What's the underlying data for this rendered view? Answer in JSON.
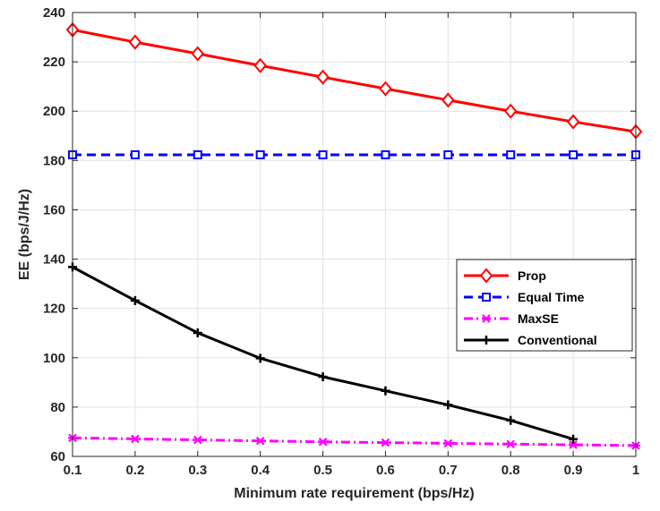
{
  "chart_data": {
    "type": "line",
    "xlabel": "Minimum rate requirement (bps/Hz)",
    "ylabel": "EE (bps/J/Hz)",
    "xlim": [
      0.1,
      1.0
    ],
    "ylim": [
      60,
      240
    ],
    "xticks": [
      "0.1",
      "0.2",
      "0.3",
      "0.4",
      "0.5",
      "0.6",
      "0.7",
      "0.8",
      "0.9",
      "1"
    ],
    "yticks": [
      "60",
      "80",
      "100",
      "120",
      "140",
      "160",
      "180",
      "200",
      "220",
      "240"
    ],
    "grid": true,
    "legend_position": "center-right",
    "series": [
      {
        "name": "Prop",
        "color": "#ff0000",
        "marker": "diamond",
        "dash": "solid",
        "x": [
          0.1,
          0.2,
          0.3,
          0.4,
          0.5,
          0.6,
          0.7,
          0.8,
          0.9,
          1.0
        ],
        "y": [
          233,
          228,
          223.3,
          218.5,
          213.8,
          209.1,
          204.5,
          200,
          195.7,
          191.7
        ]
      },
      {
        "name": "Equal Time",
        "color": "#0000ff",
        "marker": "square",
        "dash": "dashed",
        "x": [
          0.1,
          0.2,
          0.3,
          0.4,
          0.5,
          0.6,
          0.7,
          0.8,
          0.9,
          1.0
        ],
        "y": [
          182.3,
          182.3,
          182.3,
          182.3,
          182.3,
          182.3,
          182.3,
          182.3,
          182.3,
          182.3
        ]
      },
      {
        "name": "MaxSE",
        "color": "#ff00ff",
        "marker": "x-star",
        "dash": "dashdot",
        "x": [
          0.1,
          0.2,
          0.3,
          0.4,
          0.5,
          0.6,
          0.7,
          0.8,
          0.9,
          1.0
        ],
        "y": [
          67.5,
          67.1,
          66.7,
          66.3,
          65.9,
          65.6,
          65.3,
          65.0,
          64.7,
          64.4
        ]
      },
      {
        "name": "Conventional",
        "color": "#000000",
        "marker": "plus",
        "dash": "solid",
        "x": [
          0.1,
          0.2,
          0.3,
          0.4,
          0.5,
          0.6,
          0.7,
          0.8,
          0.9
        ],
        "y": [
          136.8,
          123.2,
          110.1,
          99.8,
          92.3,
          86.6,
          80.9,
          74.6,
          67
        ]
      }
    ]
  }
}
